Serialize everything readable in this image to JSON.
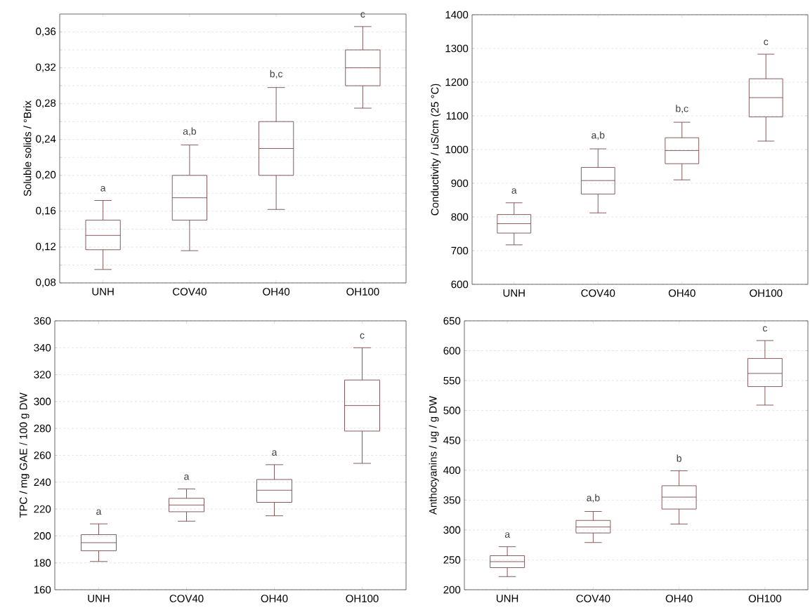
{
  "chart_data": [
    {
      "type": "box",
      "categories": [
        "UNH",
        "COV40",
        "OH40",
        "OH100"
      ],
      "ylabel": "Soluble solids / °Brix",
      "color": "#7a4a4a",
      "grid": "y",
      "ylim": [
        0.08,
        0.38
      ],
      "yticks": [
        {
          "value": 0.08,
          "label": "0,08"
        },
        {
          "value": 0.1,
          "label": null
        },
        {
          "value": 0.12,
          "label": "0,12"
        },
        {
          "value": 0.14,
          "label": null
        },
        {
          "value": 0.16,
          "label": "0,16"
        },
        {
          "value": 0.18,
          "label": null
        },
        {
          "value": 0.2,
          "label": "0,20"
        },
        {
          "value": 0.22,
          "label": null
        },
        {
          "value": 0.24,
          "label": "0,24"
        },
        {
          "value": 0.26,
          "label": null
        },
        {
          "value": 0.28,
          "label": "0,28"
        },
        {
          "value": 0.3,
          "label": null
        },
        {
          "value": 0.32,
          "label": "0,32"
        },
        {
          "value": 0.34,
          "label": null
        },
        {
          "value": 0.36,
          "label": "0,36"
        }
      ],
      "boxes": [
        {
          "low": 0.095,
          "q1": 0.117,
          "median": 0.133,
          "q3": 0.15,
          "high": 0.172
        },
        {
          "low": 0.116,
          "q1": 0.15,
          "median": 0.175,
          "q3": 0.2,
          "high": 0.234
        },
        {
          "low": 0.162,
          "q1": 0.2,
          "median": 0.23,
          "q3": 0.26,
          "high": 0.298
        },
        {
          "low": 0.275,
          "q1": 0.3,
          "median": 0.32,
          "q3": 0.34,
          "high": 0.366
        }
      ],
      "annotations": [
        "a",
        "a,b",
        "b,c",
        "c"
      ]
    },
    {
      "type": "box",
      "categories": [
        "UNH",
        "COV40",
        "OH40",
        "OH100"
      ],
      "ylabel": "Conductivity / uS/cm (25 °C)",
      "color": "#7a4a4a",
      "grid": "y",
      "ylim": [
        600,
        1400
      ],
      "yticks": [
        600,
        700,
        800,
        900,
        1000,
        1100,
        1200,
        1300,
        1400
      ],
      "boxes": [
        {
          "low": 717,
          "q1": 752,
          "median": 780,
          "q3": 807,
          "high": 842
        },
        {
          "low": 812,
          "q1": 868,
          "median": 908,
          "q3": 947,
          "high": 1002
        },
        {
          "low": 910,
          "q1": 958,
          "median": 997,
          "q3": 1035,
          "high": 1081
        },
        {
          "low": 1025,
          "q1": 1097,
          "median": 1154,
          "q3": 1210,
          "high": 1283
        }
      ],
      "annotations": [
        "a",
        "a,b",
        "b,c",
        "c"
      ]
    },
    {
      "type": "box",
      "categories": [
        "UNH",
        "COV40",
        "OH40",
        "OH100"
      ],
      "ylabel": "TPC / mg GAE / 100 g DW",
      "color": "#7a4a4a",
      "grid": "y",
      "ylim": [
        160,
        360
      ],
      "yticks": [
        160,
        180,
        200,
        220,
        240,
        260,
        280,
        300,
        320,
        340,
        360
      ],
      "boxes": [
        {
          "low": 181,
          "q1": 189,
          "median": 195,
          "q3": 201,
          "high": 209
        },
        {
          "low": 211,
          "q1": 218,
          "median": 223,
          "q3": 228,
          "high": 235
        },
        {
          "low": 215,
          "q1": 225,
          "median": 234,
          "q3": 242,
          "high": 253
        },
        {
          "low": 254,
          "q1": 278,
          "median": 297,
          "q3": 316,
          "high": 340
        }
      ],
      "annotations": [
        "a",
        "a",
        "a",
        "c"
      ]
    },
    {
      "type": "box",
      "categories": [
        "UNH",
        "COV40",
        "OH40",
        "OH100"
      ],
      "ylabel": "Anthocyanins / ug / g DW",
      "color": "#7a4a4a",
      "grid": "y",
      "ylim": [
        200,
        650
      ],
      "yticks": [
        200,
        250,
        300,
        350,
        400,
        450,
        500,
        550,
        600,
        650
      ],
      "boxes": [
        {
          "low": 222,
          "q1": 237,
          "median": 247,
          "q3": 257,
          "high": 272
        },
        {
          "low": 279,
          "q1": 295,
          "median": 305,
          "q3": 316,
          "high": 331
        },
        {
          "low": 310,
          "q1": 335,
          "median": 355,
          "q3": 374,
          "high": 399
        },
        {
          "low": 509,
          "q1": 540,
          "median": 562,
          "q3": 587,
          "high": 617
        }
      ],
      "annotations": [
        "a",
        "a,b",
        "b",
        "c"
      ]
    }
  ]
}
